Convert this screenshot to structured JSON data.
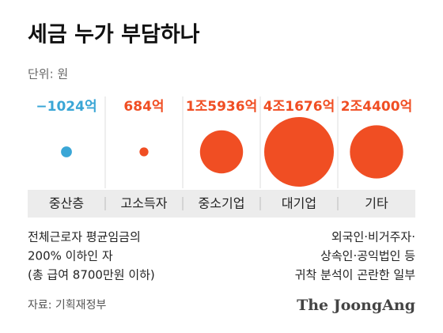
{
  "chart_data": {
    "type": "bubble",
    "title": "세금 누가 부담하나",
    "unit": "단위: 원",
    "categories": [
      "중산층",
      "고소득자",
      "중소기업",
      "대기업",
      "기타"
    ],
    "values": [
      -1024,
      684,
      15936,
      41676,
      24400
    ],
    "value_labels": [
      "−1024억",
      "684억",
      "1조5936억",
      "4조1676억",
      "2조4400억"
    ],
    "positive_color": "#f04e23",
    "negative_color": "#3aa6d6",
    "notes": {
      "left": [
        "전체근로자 평균임금의",
        "200% 이하인 자",
        "(총 급여 8700만원 이하)"
      ],
      "right": [
        "외국인·비거주자·",
        "상속인·공익법인 등",
        "귀착 분석이 곤란한 일부"
      ]
    },
    "source": "자료: 기획재정부",
    "brand": "The JoongAng"
  }
}
